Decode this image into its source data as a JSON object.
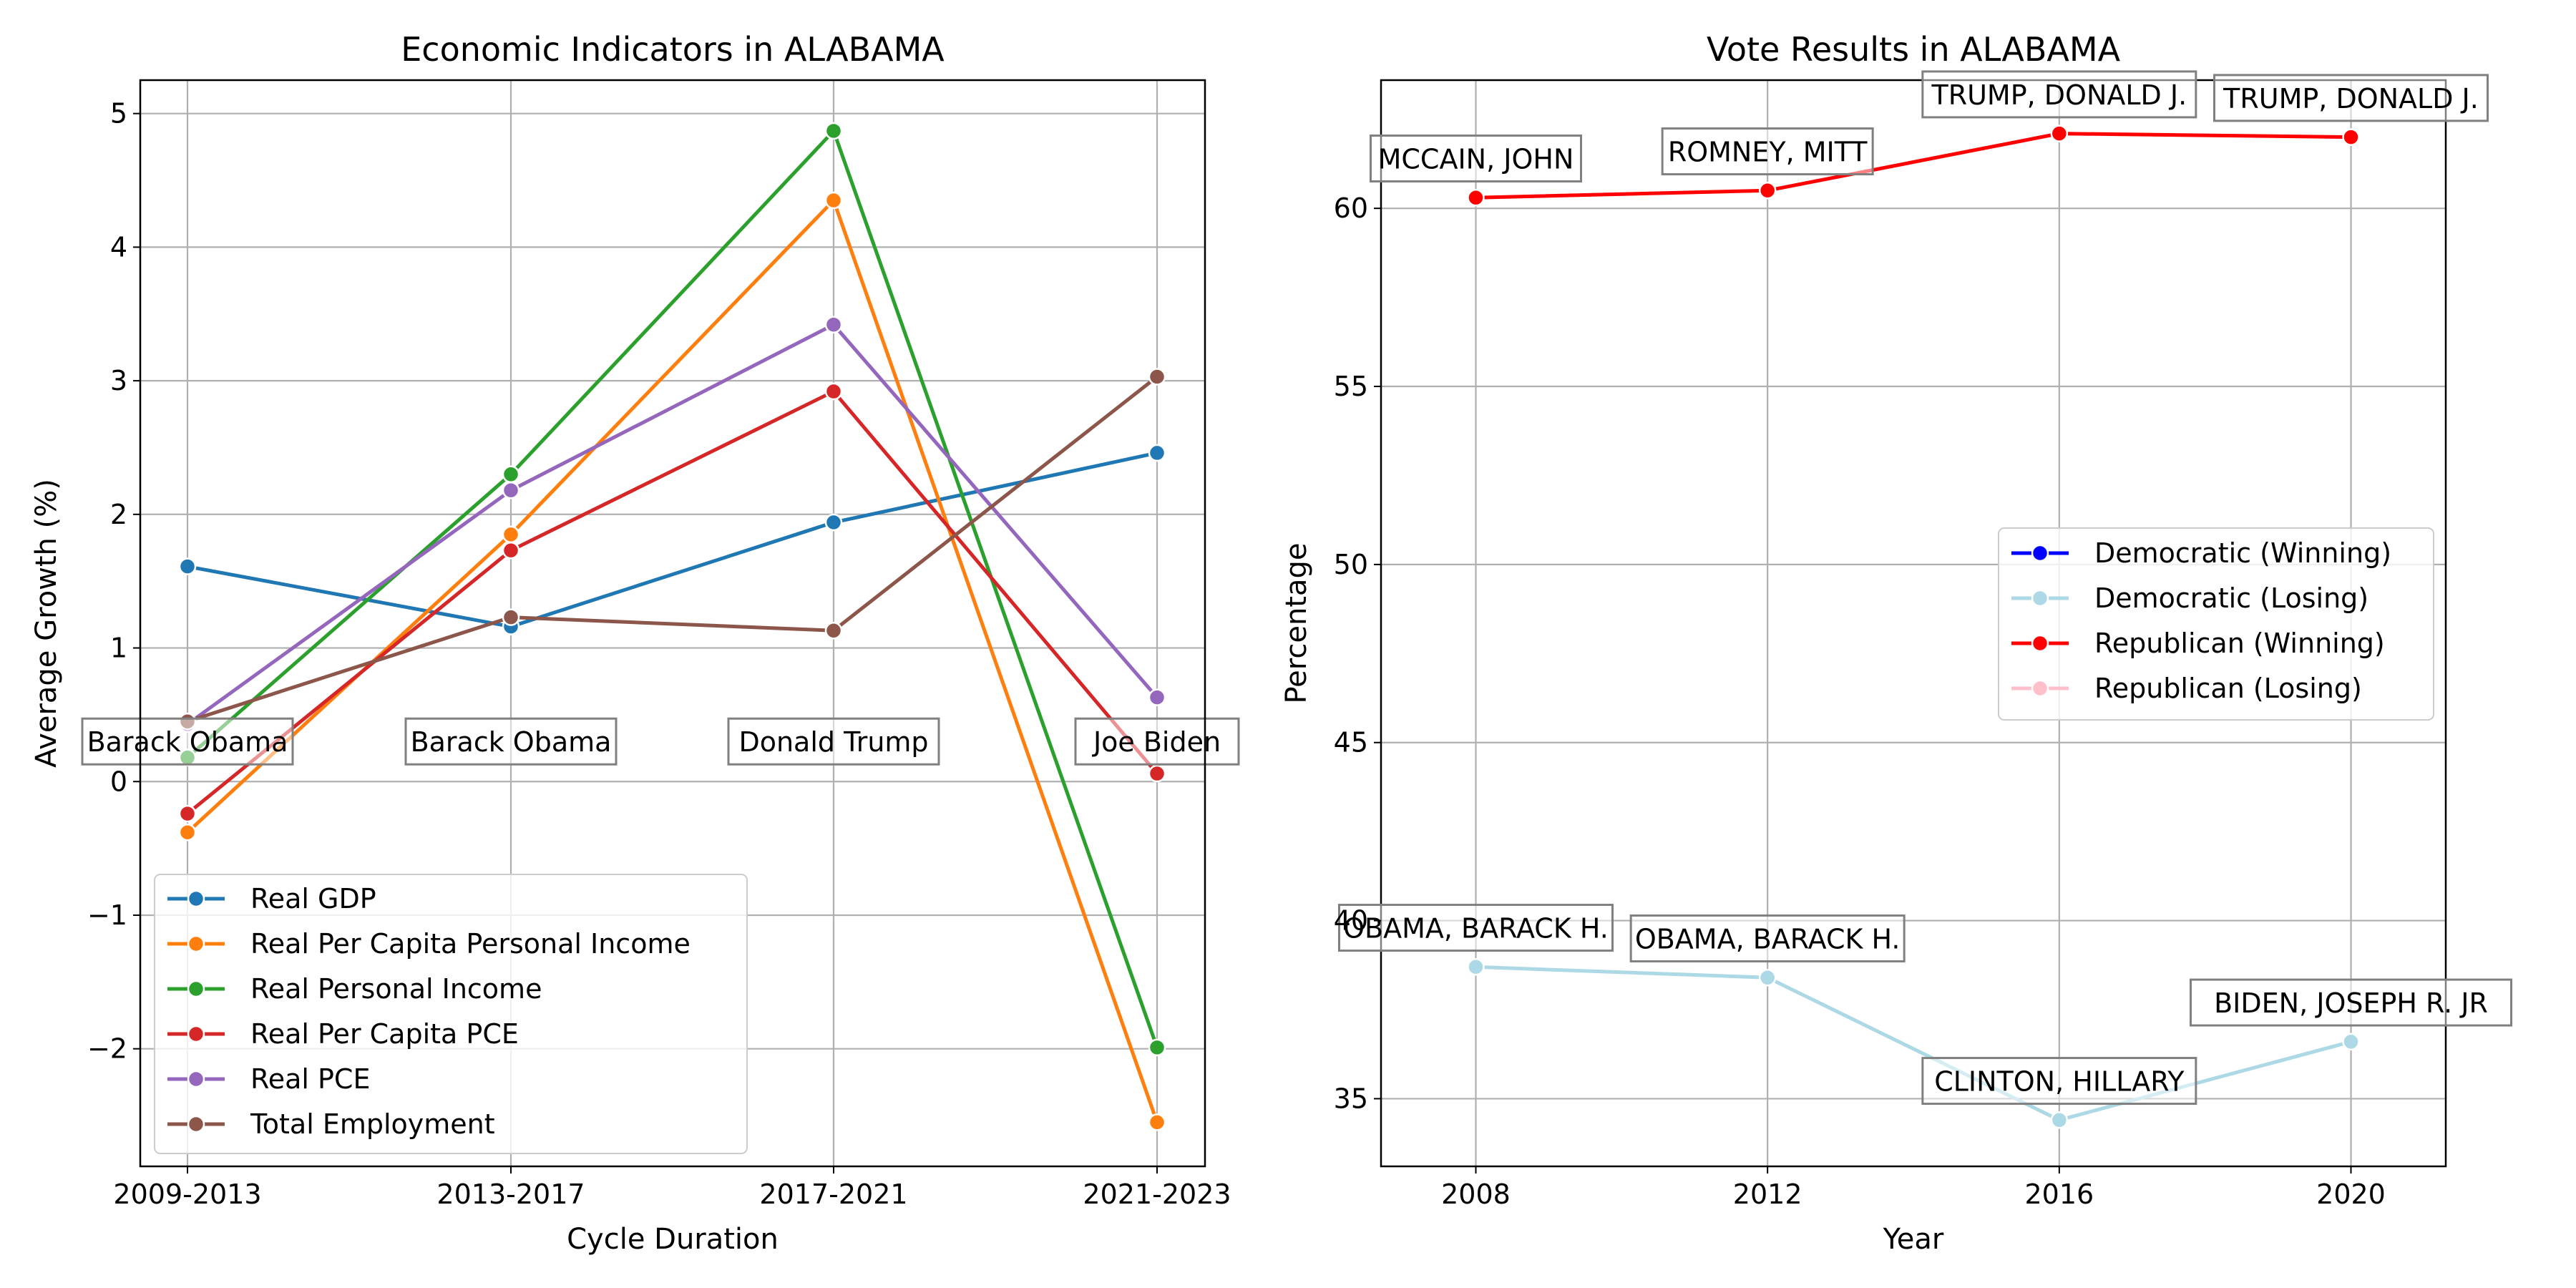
{
  "colors": {
    "Real GDP": "#1f77b4",
    "Real Per Capita Personal Income": "#ff7f0e",
    "Real Personal Income": "#2ca02c",
    "Real Per Capita PCE": "#d62728",
    "Real PCE": "#9467bd",
    "Total Employment": "#8c564b",
    "Democratic (Winning)": "#0000ff",
    "Democratic (Losing)": "#add8e6",
    "Republican (Winning)": "#ff0000",
    "Republican (Losing)": "#ffc0cb"
  },
  "chart_data": [
    {
      "type": "line",
      "title": "Economic Indicators in ALABAMA",
      "xlabel": "Cycle Duration",
      "ylabel": "Average Growth (%)",
      "categories": [
        "2009-2013",
        "2013-2017",
        "2017-2021",
        "2021-2023"
      ],
      "ylim": [
        -2.88,
        5.25
      ],
      "yticks": [
        -2,
        -1,
        0,
        1,
        2,
        3,
        4,
        5
      ],
      "ytick_labels": [
        "−2",
        "−1",
        "0",
        "1",
        "2",
        "3",
        "4",
        "5"
      ],
      "grid": true,
      "legend_position": "lower-left",
      "series": [
        {
          "name": "Real GDP",
          "values": [
            1.61,
            1.16,
            1.94,
            2.46
          ]
        },
        {
          "name": "Real Per Capita Personal Income",
          "values": [
            -0.38,
            1.85,
            4.35,
            -2.55
          ]
        },
        {
          "name": "Real Personal Income",
          "values": [
            0.18,
            2.3,
            4.87,
            -1.99
          ]
        },
        {
          "name": "Real Per Capita PCE",
          "values": [
            -0.24,
            1.73,
            2.92,
            0.06
          ]
        },
        {
          "name": "Real PCE",
          "values": [
            0.43,
            2.18,
            3.42,
            0.63
          ]
        },
        {
          "name": "Total Employment",
          "values": [
            0.45,
            1.23,
            1.13,
            3.03
          ]
        }
      ],
      "annotations": [
        {
          "text": "Barack Obama",
          "category": "2009-2013",
          "y": 0.3
        },
        {
          "text": "Barack Obama",
          "category": "2013-2017",
          "y": 0.3
        },
        {
          "text": "Donald Trump",
          "category": "2017-2021",
          "y": 0.3
        },
        {
          "text": "Joe Biden",
          "category": "2021-2023",
          "y": 0.3
        }
      ]
    },
    {
      "type": "line",
      "title": "Vote Results in ALABAMA",
      "xlabel": "Year",
      "ylabel": "Percentage",
      "x": [
        2008,
        2012,
        2016,
        2020
      ],
      "xlim": [
        2006.7,
        2021.3
      ],
      "ylim": [
        33.1,
        63.6
      ],
      "yticks": [
        35,
        40,
        45,
        50,
        55,
        60
      ],
      "ytick_labels": [
        "35",
        "40",
        "45",
        "50",
        "55",
        "60"
      ],
      "grid": true,
      "legend_position": "center-right",
      "legend": [
        "Democratic (Winning)",
        "Democratic (Losing)",
        "Republican (Winning)",
        "Republican (Losing)"
      ],
      "series": [
        {
          "name": "Republican (Winning)",
          "values": [
            60.3,
            60.5,
            62.1,
            62.0
          ]
        },
        {
          "name": "Democratic (Losing)",
          "values": [
            38.7,
            38.4,
            34.4,
            36.6
          ]
        }
      ],
      "annotations": [
        {
          "text": "MCCAIN, JOHN",
          "x": 2008,
          "y": 61.4
        },
        {
          "text": "ROMNEY, MITT",
          "x": 2012,
          "y": 61.6
        },
        {
          "text": "TRUMP, DONALD J.",
          "x": 2016,
          "y": 63.2
        },
        {
          "text": "TRUMP, DONALD J.",
          "x": 2020,
          "y": 63.1
        },
        {
          "text": "OBAMA, BARACK H.",
          "x": 2008,
          "y": 39.8
        },
        {
          "text": "OBAMA, BARACK H.",
          "x": 2012,
          "y": 39.5
        },
        {
          "text": "CLINTON, HILLARY",
          "x": 2016,
          "y": 35.5
        },
        {
          "text": "BIDEN, JOSEPH R. JR",
          "x": 2020,
          "y": 37.7
        }
      ]
    }
  ]
}
